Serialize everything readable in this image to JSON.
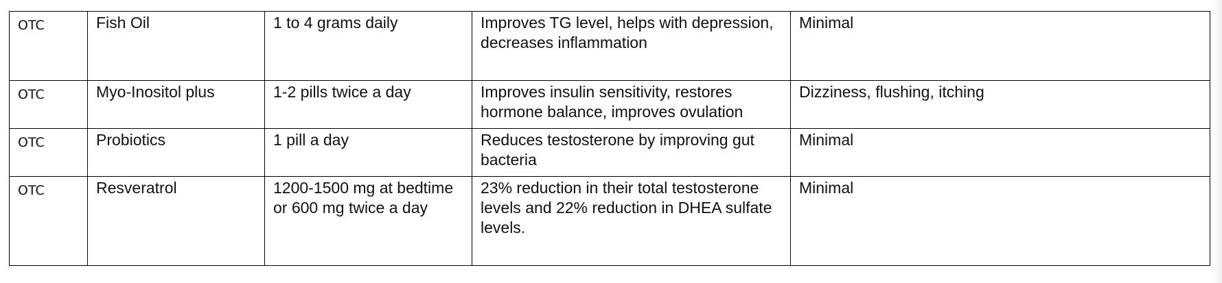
{
  "table": {
    "rows": [
      {
        "type": "OTC",
        "name": "Fish Oil",
        "dosage": "1 to 4 grams daily",
        "benefits": "Improves TG level, helps with depression, decreases inflammation",
        "side_effects": "Minimal"
      },
      {
        "type": "OTC",
        "name": "Myo-Inositol plus",
        "dosage": "1-2 pills twice a day",
        "benefits": "Improves insulin sensitivity, restores hormone balance, improves ovulation",
        "side_effects": "Dizziness, flushing, itching"
      },
      {
        "type": "OTC",
        "name": "Probiotics",
        "dosage": "1 pill a day",
        "benefits": "Reduces testosterone by improving gut bacteria",
        "side_effects": "Minimal"
      },
      {
        "type": "OTC",
        "name": "Resveratrol",
        "dosage": "1200-1500 mg at bedtime or 600 mg twice a day",
        "benefits": "23% reduction in their total testosterone levels and 22% reduction in DHEA sulfate levels.",
        "side_effects": "Minimal"
      }
    ]
  }
}
